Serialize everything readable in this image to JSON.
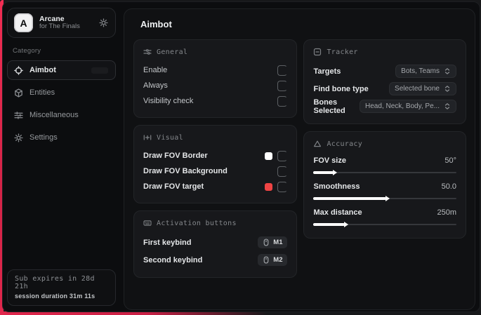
{
  "accent_color": "#e0274c",
  "sidebar": {
    "logo": {
      "letter": "A",
      "title": "Arcane",
      "subtitle": "for The Finals"
    },
    "category_label": "Category",
    "items": [
      {
        "label": "Aimbot",
        "icon": "crosshair-icon",
        "active": true
      },
      {
        "label": "Entities",
        "icon": "cube-icon",
        "active": false
      },
      {
        "label": "Miscellaneous",
        "icon": "sliders-icon",
        "active": false
      },
      {
        "label": "Settings",
        "icon": "gear-icon",
        "active": false
      }
    ],
    "status": {
      "line1": "Sub expires in 28d 21h",
      "line2": "session duration 31m 11s"
    }
  },
  "main": {
    "title": "Aimbot",
    "cards": {
      "general": {
        "title": "General",
        "rows": [
          {
            "label": "Enable",
            "checked": false
          },
          {
            "label": "Always",
            "checked": false
          },
          {
            "label": "Visibility check",
            "checked": false
          }
        ]
      },
      "visual": {
        "title": "Visual",
        "rows": [
          {
            "label": "Draw FOV Border",
            "swatch": "#ffffff",
            "checked": false
          },
          {
            "label": "Draw FOV Background",
            "checked": false
          },
          {
            "label": "Draw FOV target",
            "swatch": "#ef4444",
            "checked": false
          }
        ]
      },
      "activation": {
        "title": "Activation buttons",
        "rows": [
          {
            "label": "First keybind",
            "key": "M1"
          },
          {
            "label": "Second keybind",
            "key": "M2"
          }
        ]
      },
      "tracker": {
        "title": "Tracker",
        "rows": [
          {
            "label": "Targets",
            "value": "Bots, Teams"
          },
          {
            "label": "Find bone type",
            "value": "Selected bone"
          },
          {
            "label": "Bones Selected",
            "value": "Head, Neck, Body, Pe..."
          }
        ]
      },
      "accuracy": {
        "title": "Accuracy",
        "rows": [
          {
            "label": "FOV size",
            "value": "50°",
            "percent": 14
          },
          {
            "label": "Smoothness",
            "value": "50.0",
            "percent": 51
          },
          {
            "label": "Max distance",
            "value": "250m",
            "percent": 22
          }
        ]
      }
    }
  }
}
